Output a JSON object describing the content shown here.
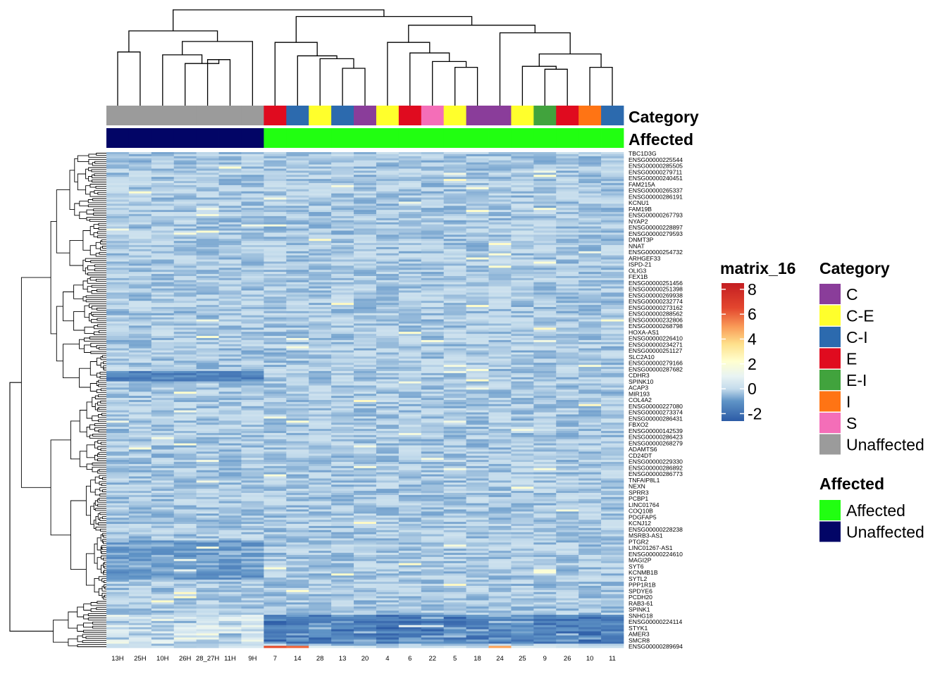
{
  "chart_data": {
    "type": "heatmap",
    "title": "",
    "columns": [
      "13H",
      "25H",
      "10H",
      "26H",
      "28_27H",
      "11H",
      "9H",
      "7",
      "14",
      "28",
      "13",
      "20",
      "4",
      "6",
      "22",
      "5",
      "18",
      "24",
      "25",
      "9",
      "26",
      "10",
      "11"
    ],
    "annotation_tracks": [
      {
        "name": "Category",
        "values": [
          "Unaffected",
          "Unaffected",
          "Unaffected",
          "Unaffected",
          "Unaffected",
          "Unaffected",
          "Unaffected",
          "E",
          "C-I",
          "C-E",
          "C-I",
          "C",
          "C-E",
          "E",
          "S",
          "C-E",
          "C",
          "C",
          "C-E",
          "E-I",
          "E",
          "I",
          "C-I"
        ]
      },
      {
        "name": "Affected",
        "values": [
          "Unaffected",
          "Unaffected",
          "Unaffected",
          "Unaffected",
          "Unaffected",
          "Unaffected",
          "Unaffected",
          "Affected",
          "Affected",
          "Affected",
          "Affected",
          "Affected",
          "Affected",
          "Affected",
          "Affected",
          "Affected",
          "Affected",
          "Affected",
          "Affected",
          "Affected",
          "Affected",
          "Affected",
          "Affected"
        ]
      }
    ],
    "row_labels": [
      "TBC1D3G",
      "ENSG00000225544",
      "ENSG00000285505",
      "ENSG00000279711",
      "ENSG00000240451",
      "FAM215A",
      "ENSG00000265337",
      "ENSG00000286191",
      "KCNU1",
      "FAM19B",
      "ENSG00000267793",
      "NYAP2",
      "ENSG00000228897",
      "ENSG00000279593",
      "DNMT3P",
      "NNAT",
      "ENSG00000254732",
      "ARHGEF33",
      "ISPD-21",
      "OLIG3",
      "FEX1B",
      "ENSG00000251456",
      "ENSG00000251398",
      "ENSG00000269938",
      "ENSG00000232774",
      "ENSG00000273162",
      "ENSG00000288562",
      "ENSG00000232806",
      "ENSG00000268798",
      "HOXA-AS1",
      "ENSG00000226410",
      "ENSG00000234271",
      "ENSG00000251127",
      "SLC2A10",
      "ENSG00000279166",
      "ENSG00000287682",
      "CDHR3",
      "SPINK10",
      "ACAP3",
      "MIR193",
      "COL4A2",
      "ENSG00000227080",
      "ENSG00000273374",
      "ENSG00000286431",
      "FBXO2",
      "ENSG00000142539",
      "ENSG00000286423",
      "ENSG00000268279",
      "ADAMTS6",
      "CD24DT",
      "ENSG00000229330",
      "ENSG00000286892",
      "ENSG00000286773",
      "TNFAIP8L1",
      "NEXN",
      "SPRR3",
      "PCBP1",
      "LINC01764",
      "COQ10B",
      "PDGFAP5",
      "KCNJ12",
      "ENSG00000228238",
      "MSRB3-AS1",
      "PTGR2",
      "LINC01267-AS1",
      "ENSG00000224610",
      "MAGI2P",
      "SYT6",
      "KCNMB1B",
      "SYTL2",
      "PPP1R1B",
      "SPDYE6",
      "PCDH20",
      "RAB3-61",
      "SPINK1",
      "SNHG18",
      "ENSG00000224114",
      "STYK1",
      "AMER3",
      "SMCR8",
      "ENSG00000289694"
    ],
    "num_rows": 240,
    "color_scale": {
      "name": "matrix_16",
      "min": -2.6,
      "max": 8.5,
      "ticks": [
        8,
        6,
        4,
        2,
        0,
        -2
      ],
      "stops": [
        {
          "value": -2.6,
          "color": "#2c5ba6"
        },
        {
          "value": -1.0,
          "color": "#5f93c6"
        },
        {
          "value": 0.0,
          "color": "#c5dcec"
        },
        {
          "value": 1.0,
          "color": "#e8f3f3"
        },
        {
          "value": 2.2,
          "color": "#ffffd0"
        },
        {
          "value": 3.6,
          "color": "#fee08b"
        },
        {
          "value": 5.0,
          "color": "#f99a57"
        },
        {
          "value": 6.5,
          "color": "#e3462e"
        },
        {
          "value": 8.5,
          "color": "#c41e22"
        }
      ]
    },
    "legends": [
      {
        "title": "Category",
        "entries": [
          {
            "label": "C",
            "color": "#8a3d9a"
          },
          {
            "label": "C-E",
            "color": "#ffff2c"
          },
          {
            "label": "C-I",
            "color": "#2c6aae"
          },
          {
            "label": "E",
            "color": "#e00b1f"
          },
          {
            "label": "E-I",
            "color": "#41a33d"
          },
          {
            "label": "I",
            "color": "#ff7414"
          },
          {
            "label": "S",
            "color": "#f46eb8"
          },
          {
            "label": "Unaffected",
            "color": "#9b9b9b"
          }
        ]
      },
      {
        "title": "Affected",
        "entries": [
          {
            "label": "Affected",
            "color": "#21ff11"
          },
          {
            "label": "Unaffected",
            "color": "#020566"
          }
        ]
      }
    ]
  }
}
